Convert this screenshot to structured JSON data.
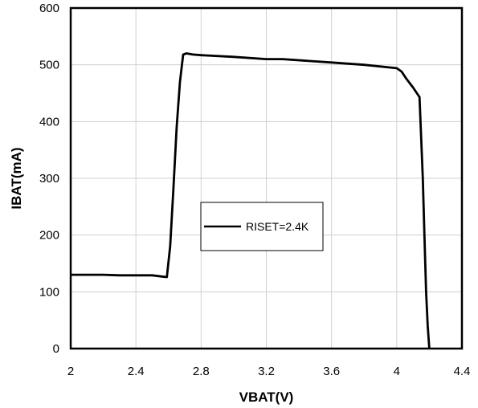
{
  "chart_data": {
    "type": "line",
    "title": "",
    "xlabel": "VBAT(V)",
    "ylabel": "IBAT(mA)",
    "xlim": [
      2,
      4.4
    ],
    "ylim": [
      0,
      600
    ],
    "x_ticks": [
      2,
      2.4,
      2.8,
      3.2,
      3.6,
      4,
      4.4
    ],
    "x_tick_labels": [
      "2",
      "2.4",
      "2.8",
      "3.2",
      "3.6",
      "4",
      "4.4"
    ],
    "y_ticks": [
      0,
      100,
      200,
      300,
      400,
      500,
      600
    ],
    "y_tick_labels": [
      "0",
      "100",
      "200",
      "300",
      "400",
      "500",
      "600"
    ],
    "grid": true,
    "legend_position": "center",
    "line_color": "#000000",
    "grid_color": "#d0d0d0",
    "series": [
      {
        "name": "RISET=2.4K",
        "x": [
          2.0,
          2.2,
          2.3,
          2.5,
          2.56,
          2.59,
          2.61,
          2.63,
          2.65,
          2.67,
          2.69,
          2.71,
          2.75,
          2.8,
          3.0,
          3.2,
          3.3,
          3.6,
          3.8,
          4.0,
          4.03,
          4.06,
          4.1,
          4.14,
          4.16,
          4.17,
          4.18,
          4.19,
          4.2
        ],
        "y": [
          130,
          130,
          129,
          129,
          127,
          126,
          180,
          280,
          390,
          470,
          518,
          520,
          518,
          517,
          514,
          510,
          510,
          504,
          500,
          494,
          488,
          475,
          460,
          443,
          300,
          200,
          100,
          40,
          0
        ]
      }
    ]
  }
}
